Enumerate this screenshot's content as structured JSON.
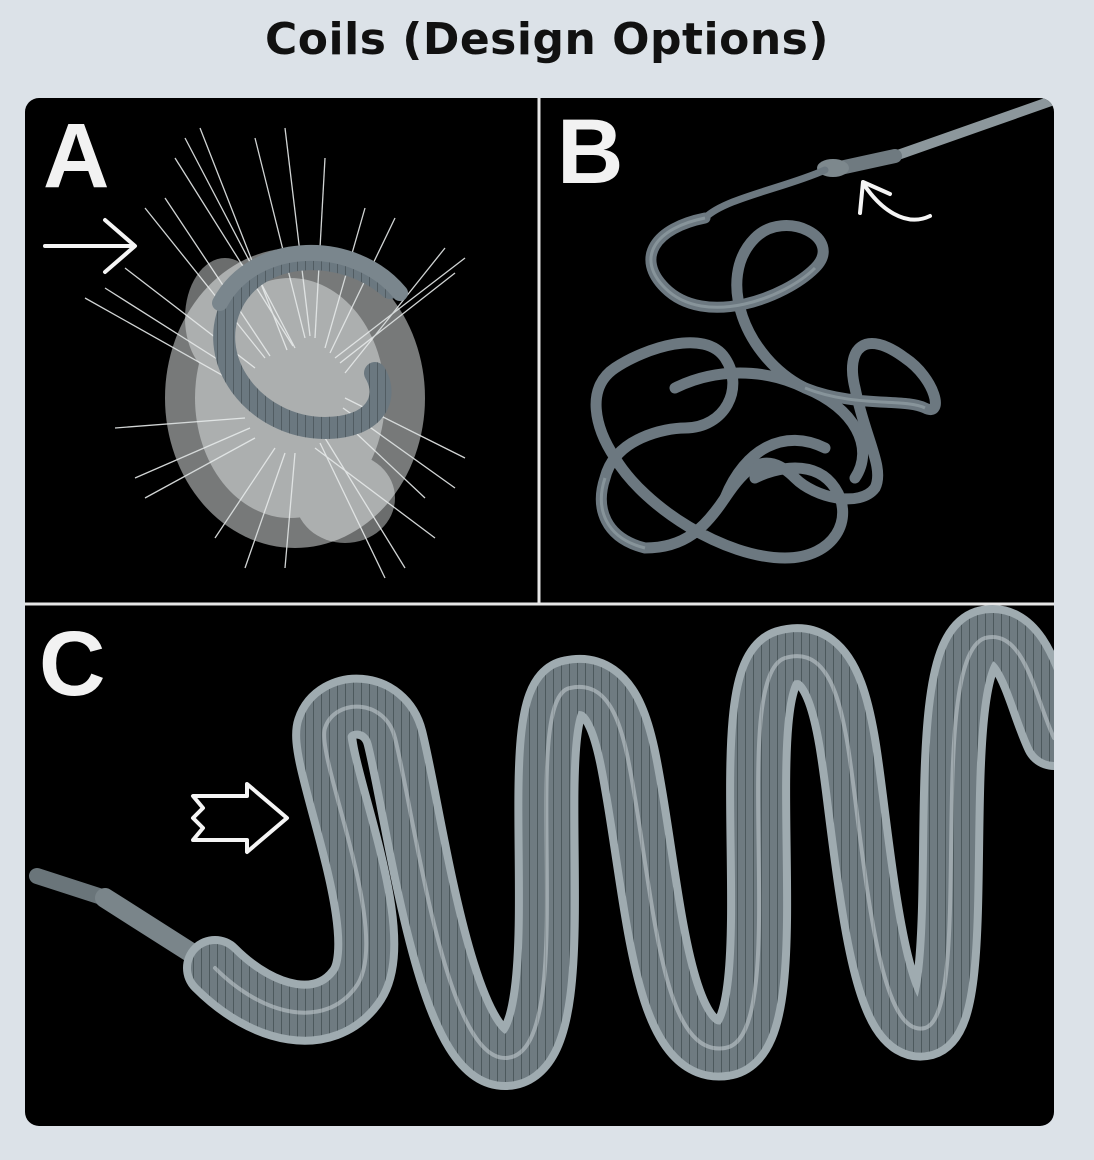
{
  "title": "Coils (Design Options)",
  "panels": [
    {
      "letter": "A"
    },
    {
      "letter": "B"
    },
    {
      "letter": "C"
    }
  ]
}
